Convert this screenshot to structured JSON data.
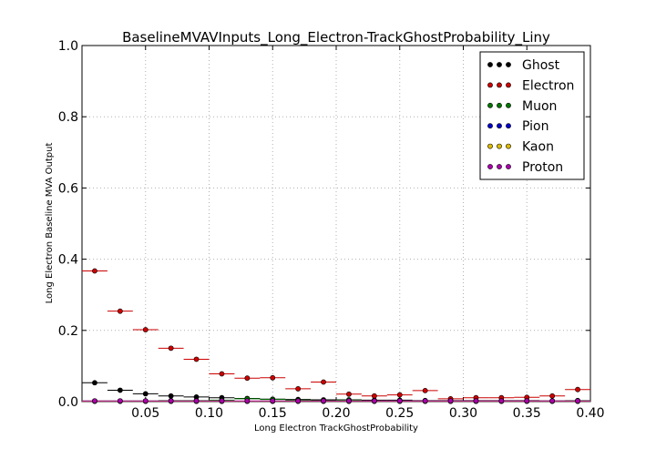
{
  "chart_data": {
    "type": "scatter",
    "title": "BaselineMVAVInputs_Long_Electron-TrackGhostProbability_Liny",
    "xlabel": "Long Electron TrackGhostProbability",
    "ylabel": "Long Electron Baseline MVA Output",
    "xlim": [
      0.0,
      0.4
    ],
    "ylim": [
      0.0,
      1.0
    ],
    "x_ticks": [
      0.05,
      0.1,
      0.15,
      0.2,
      0.25,
      0.3,
      0.35,
      0.4
    ],
    "x_tick_labels": [
      "0.05",
      "0.10",
      "0.15",
      "0.20",
      "0.25",
      "0.30",
      "0.35",
      "0.40"
    ],
    "y_ticks": [
      0.0,
      0.2,
      0.4,
      0.6,
      0.8,
      1.0
    ],
    "y_tick_labels": [
      "0.0",
      "0.2",
      "0.4",
      "0.6",
      "0.8",
      "1.0"
    ],
    "grid": true,
    "legend_position": "top-right",
    "bin_half_width": 0.01,
    "x": [
      0.01,
      0.03,
      0.05,
      0.07,
      0.09,
      0.11,
      0.13,
      0.15,
      0.17,
      0.19,
      0.21,
      0.23,
      0.25,
      0.27,
      0.29,
      0.31,
      0.33,
      0.35,
      0.37,
      0.39
    ],
    "series": [
      {
        "name": "Ghost",
        "color": "#000000",
        "values": [
          0.053,
          0.032,
          0.022,
          0.016,
          0.013,
          0.011,
          0.009,
          0.007,
          0.006,
          0.005,
          0.005,
          0.004,
          0.004,
          0.003,
          0.003,
          0.003,
          0.003,
          0.003,
          0.002,
          0.002
        ]
      },
      {
        "name": "Electron",
        "color": "#cc0000",
        "values": [
          0.367,
          0.254,
          0.202,
          0.15,
          0.119,
          0.078,
          0.066,
          0.067,
          0.036,
          0.055,
          0.021,
          0.016,
          0.019,
          0.031,
          0.008,
          0.011,
          0.011,
          0.012,
          0.016,
          0.034
        ]
      },
      {
        "name": "Muon",
        "color": "#007700",
        "values": [
          0.002,
          0.002,
          0.002,
          0.003,
          0.003,
          0.004,
          0.008,
          0.006,
          0.004,
          0.003,
          0.004,
          0.002,
          0.002,
          0.002,
          0.002,
          0.002,
          0.002,
          0.002,
          0.002,
          0.003
        ]
      },
      {
        "name": "Pion",
        "color": "#0000cc",
        "values": [
          0.001,
          0.001,
          0.001,
          0.001,
          0.001,
          0.001,
          0.001,
          0.001,
          0.001,
          0.001,
          0.001,
          0.001,
          0.001,
          0.001,
          0.001,
          0.001,
          0.001,
          0.001,
          0.001,
          0.001
        ]
      },
      {
        "name": "Kaon",
        "color": "#ddbb00",
        "values": [
          0.001,
          0.001,
          0.001,
          0.001,
          0.001,
          0.001,
          0.001,
          0.001,
          0.001,
          0.001,
          0.001,
          0.001,
          0.001,
          0.001,
          0.001,
          0.001,
          0.001,
          0.001,
          0.001,
          0.001
        ]
      },
      {
        "name": "Proton",
        "color": "#aa00aa",
        "values": [
          0.002,
          0.002,
          0.002,
          0.002,
          0.002,
          0.002,
          0.002,
          0.002,
          0.002,
          0.002,
          0.002,
          0.002,
          0.002,
          0.002,
          0.002,
          0.002,
          0.002,
          0.002,
          0.002,
          0.002
        ]
      }
    ]
  }
}
